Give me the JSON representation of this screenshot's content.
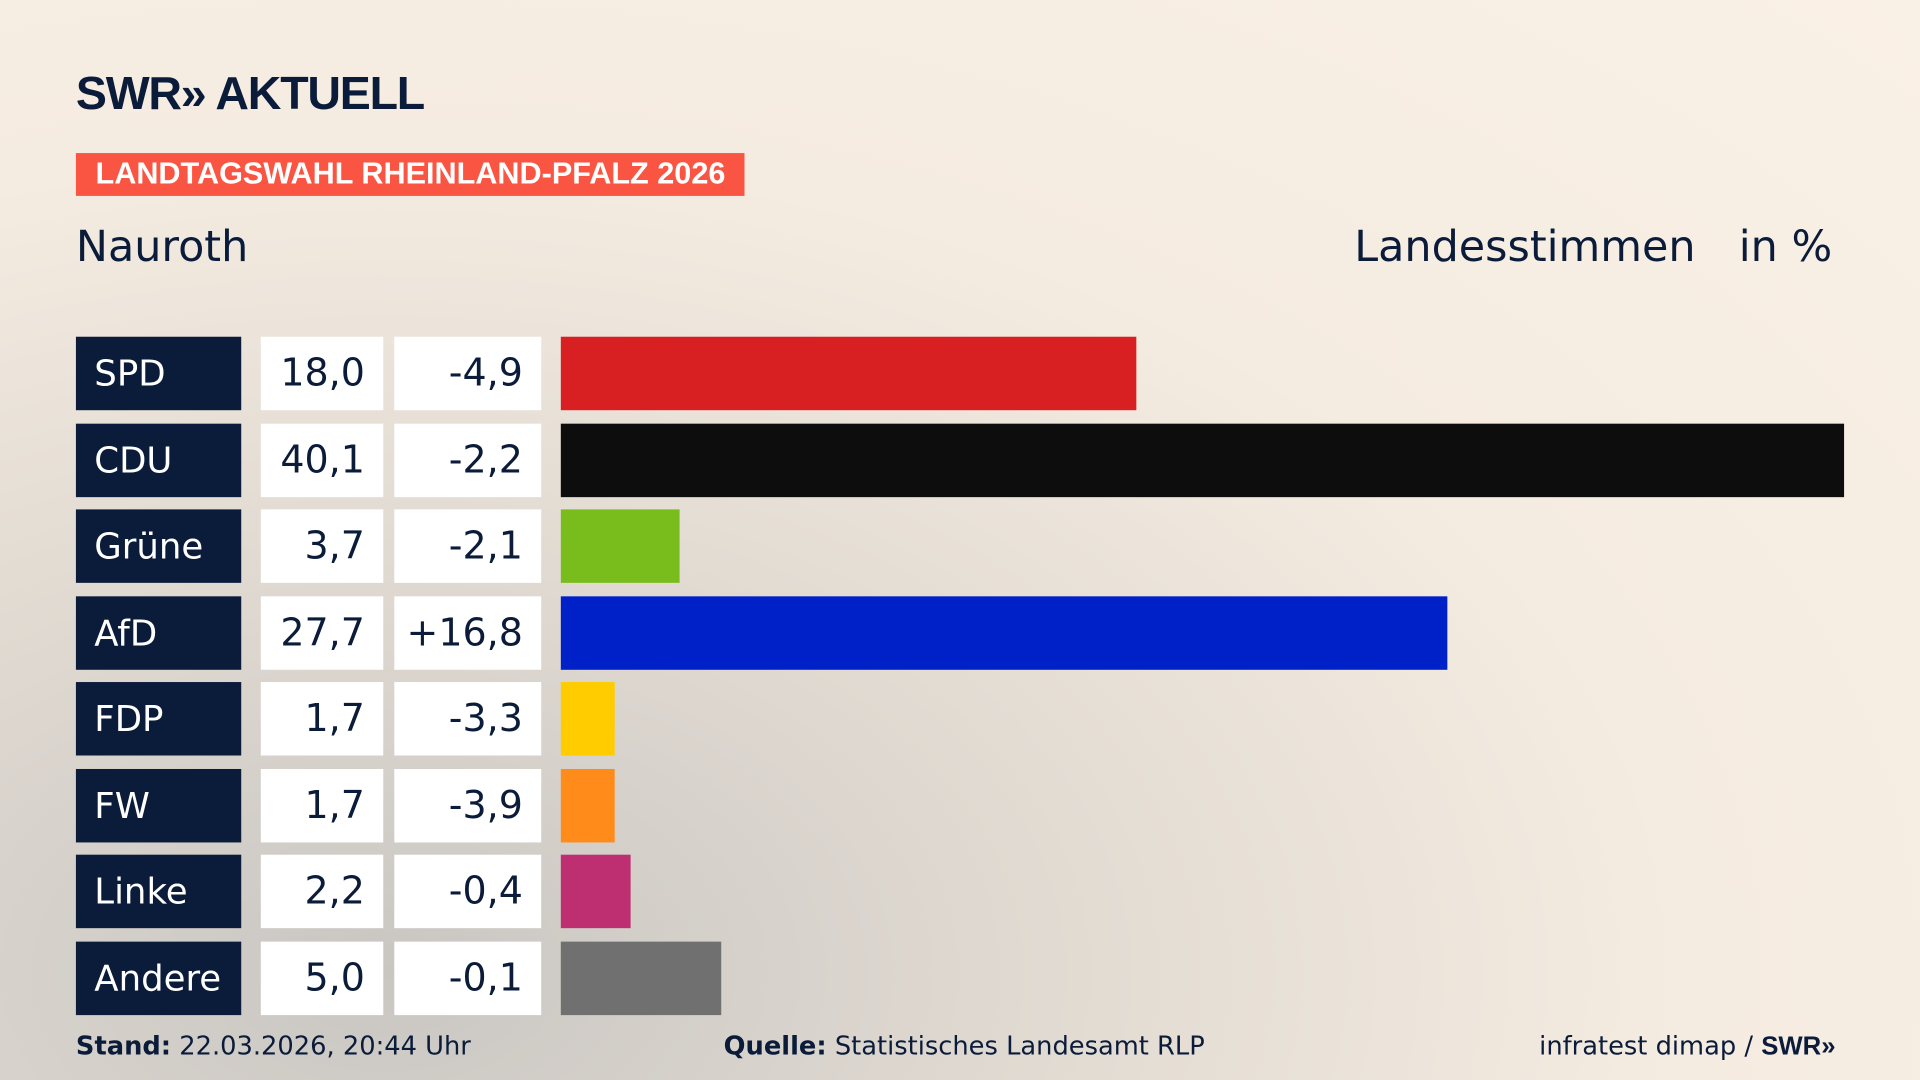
{
  "header": {
    "logo": "SWR» AKTUELL",
    "banner": "LANDTAGSWAHL RHEINLAND-PFALZ 2026",
    "place": "Nauroth",
    "vote_type": "Landesstimmen",
    "unit": "in %"
  },
  "chart_data": {
    "type": "bar",
    "orientation": "horizontal",
    "xlim": [
      0,
      40.1
    ],
    "categories": [
      "SPD",
      "CDU",
      "Grüne",
      "AfD",
      "FDP",
      "FW",
      "Linke",
      "Andere"
    ],
    "values": [
      18.0,
      40.1,
      3.7,
      27.7,
      1.7,
      1.7,
      2.2,
      5.0
    ],
    "value_labels": [
      "18,0",
      "40,1",
      "3,7",
      "27,7",
      "1,7",
      "1,7",
      "2,2",
      "5,0"
    ],
    "diff_labels": [
      "-4,9",
      "-2,2",
      "-2,1",
      "+16,8",
      "-3,3",
      "-3,9",
      "-0,4",
      "-0,1"
    ],
    "colors": [
      "#d81f22",
      "#0d0d0d",
      "#79bd1c",
      "#0020c8",
      "#ffcc00",
      "#ff8c1a",
      "#be2f72",
      "#707070"
    ]
  },
  "footer": {
    "stand_label": "Stand:",
    "stand_value": "22.03.2026, 20:44 Uhr",
    "source_label": "Quelle:",
    "source_value": "Statistisches Landesamt RLP",
    "credit": "infratest dimap /",
    "credit_logo": "SWR»"
  }
}
